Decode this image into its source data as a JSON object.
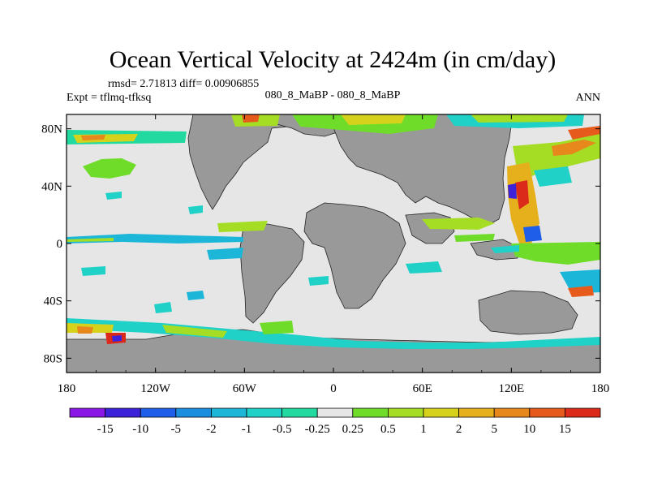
{
  "chart_data": {
    "type": "heatmap",
    "title": "Ocean Vertical Velocity at 2424m (in cm/day)",
    "rmsd_text": "rmsd= 2.71813 diff= 0.00906855",
    "experiment_text": "Expt = tflmq-tfksq",
    "case_text": "080_8_MaBP - 080_8_MaBP",
    "season_text": "ANN",
    "x_ticks": [
      "180",
      "120W",
      "60W",
      "0",
      "60E",
      "120E",
      "180"
    ],
    "x_range": [
      -180,
      180
    ],
    "y_ticks": [
      "80N",
      "40N",
      "0",
      "40S",
      "80S"
    ],
    "y_range": [
      -90,
      90
    ],
    "colorbar": {
      "labels": [
        "-15",
        "-10",
        "-5",
        "-2",
        "-1",
        "-0.5",
        "-0.25",
        "0.25",
        "0.5",
        "1",
        "2",
        "5",
        "10",
        "15"
      ],
      "colors": [
        "#8a17e6",
        "#3c22d8",
        "#1f5ee8",
        "#1c8ee0",
        "#1cb6d8",
        "#20d1c8",
        "#22d9a0",
        "#e6e6e6",
        "#6fdc2a",
        "#a5dc24",
        "#d6d21c",
        "#e6b01c",
        "#e6881c",
        "#e65a1c",
        "#dc2a1a"
      ]
    },
    "land_color": "#999999",
    "no_change_color": "#e6e6e6"
  }
}
